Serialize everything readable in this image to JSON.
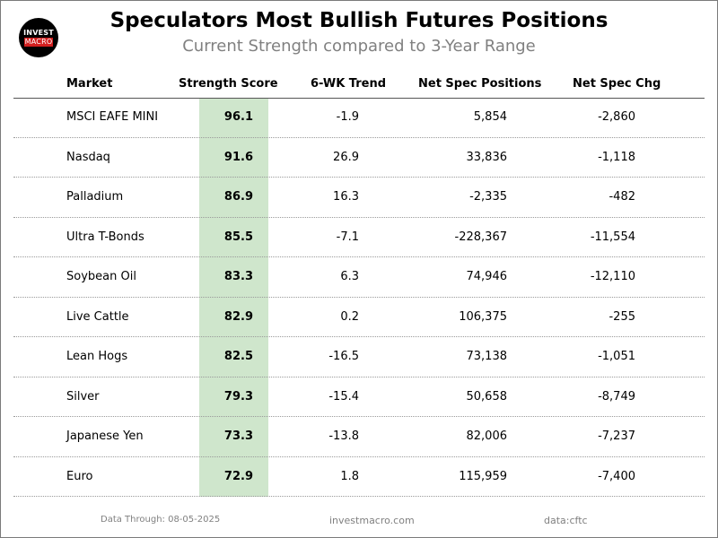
{
  "logo": {
    "line1": "INVEST",
    "line2": "MACRO"
  },
  "chart_data": {
    "type": "table",
    "title": "Speculators Most Bullish Futures Positions",
    "subtitle": "Current Strength compared to 3-Year Range",
    "columns": [
      "Market",
      "Strength Score",
      "6-WK Trend",
      "Net Spec Positions",
      "Net Spec Chg"
    ],
    "rows": [
      [
        "MSCI EAFE MINI",
        "96.1",
        "-1.9",
        "5,854",
        "-2,860"
      ],
      [
        "Nasdaq",
        "91.6",
        "26.9",
        "33,836",
        "-1,118"
      ],
      [
        "Palladium",
        "86.9",
        "16.3",
        "-2,335",
        "-482"
      ],
      [
        "Ultra T-Bonds",
        "85.5",
        "-7.1",
        "-228,367",
        "-11,554"
      ],
      [
        "Soybean Oil",
        "83.3",
        "6.3",
        "74,946",
        "-12,110"
      ],
      [
        "Live Cattle",
        "82.9",
        "0.2",
        "106,375",
        "-255"
      ],
      [
        "Lean Hogs",
        "82.5",
        "-16.5",
        "73,138",
        "-1,051"
      ],
      [
        "Silver",
        "79.3",
        "-15.4",
        "50,658",
        "-8,749"
      ],
      [
        "Japanese Yen",
        "73.3",
        "-13.8",
        "82,006",
        "-7,237"
      ],
      [
        "Euro",
        "72.9",
        "1.8",
        "115,959",
        "-7,400"
      ]
    ],
    "highlight_color": "#cfe6cc"
  },
  "footer": {
    "date_note": "Data Through: 08-05-2025",
    "site": "investmacro.com",
    "source": "data:cftc"
  }
}
